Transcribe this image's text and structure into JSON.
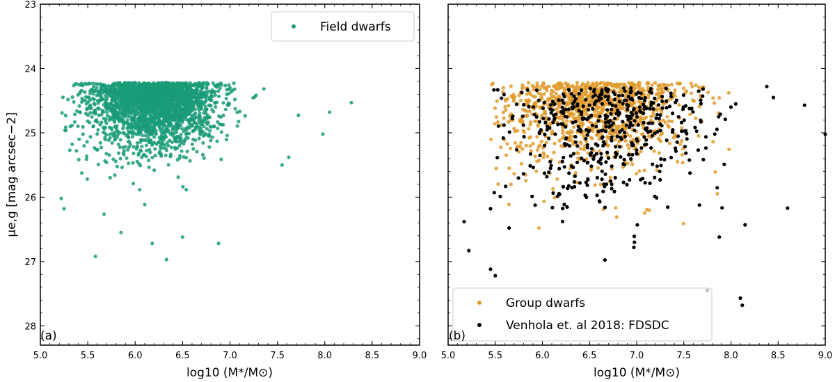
{
  "colors": {
    "field": "#1a9b78",
    "group": "#e09a2a",
    "venhola": "#000000"
  },
  "chart_data": [
    {
      "type": "scatter",
      "panel_label": "(a)",
      "xlabel": "log10 (M*/M⊙)",
      "ylabel": "μe,g [mag arcsec−2]",
      "xlim": [
        5.0,
        9.0
      ],
      "ylim": [
        28.3,
        23.0
      ],
      "y_inverted": true,
      "xticks": [
        "5.0",
        "5.5",
        "6.0",
        "6.5",
        "7.0",
        "7.5",
        "8.0",
        "8.5",
        "9.0"
      ],
      "yticks": [
        "23",
        "24",
        "25",
        "26",
        "27",
        "28"
      ],
      "legend_position": "top-right",
      "series": [
        {
          "name": "Field dwarfs",
          "color": "#1a9b78",
          "generator": {
            "n": 2400,
            "seed": 11,
            "mu_floor": 24.22,
            "x_range": [
              5.2,
              8.3
            ],
            "core": {
              "x_mean": 6.2,
              "x_sd": 0.33,
              "y_scale": 0.55
            }
          },
          "outliers": [
            [
              5.58,
              26.92
            ],
            [
              6.33,
              26.97
            ],
            [
              6.18,
              26.72
            ],
            [
              6.88,
              26.72
            ],
            [
              8.28,
              24.53
            ],
            [
              8.05,
              24.68
            ],
            [
              7.98,
              25.02
            ],
            [
              5.22,
              26.02
            ],
            [
              5.25,
              26.18
            ],
            [
              5.38,
              25.28
            ],
            [
              5.45,
              25.02
            ],
            [
              7.62,
              25.38
            ],
            [
              7.55,
              25.5
            ],
            [
              5.85,
              26.55
            ],
            [
              6.5,
              26.62
            ]
          ]
        }
      ]
    },
    {
      "type": "scatter",
      "panel_label": "(b)",
      "xlabel": "log10 (M*/M⊙)",
      "xlim": [
        5.0,
        9.0
      ],
      "ylim": [
        28.3,
        23.0
      ],
      "y_inverted": true,
      "xticks": [
        "5.0",
        "5.5",
        "6.0",
        "6.5",
        "7.0",
        "7.5",
        "8.0",
        "8.5",
        "9.0"
      ],
      "legend_position": "bottom-left",
      "series": [
        {
          "name": "Group dwarfs",
          "color": "#e09a2a",
          "generator": {
            "n": 1100,
            "seed": 23,
            "mu_floor": 24.22,
            "x_range": [
              5.45,
              8.05
            ],
            "core": {
              "x_mean": 6.55,
              "x_sd": 0.5,
              "y_scale": 0.75
            }
          }
        },
        {
          "name": "Venhola et. al 2018: FDSDC",
          "color": "#000000",
          "generator": {
            "n": 480,
            "seed": 37,
            "mu_floor": 24.3,
            "x_range": [
              5.45,
              8.2
            ],
            "core": {
              "x_mean": 6.7,
              "x_sd": 0.55,
              "y_scale": 1.05
            }
          },
          "outliers": [
            [
              5.17,
              26.38
            ],
            [
              5.22,
              26.83
            ],
            [
              5.45,
              27.12
            ],
            [
              5.5,
              27.22
            ],
            [
              5.45,
              26.18
            ],
            [
              8.1,
              27.57
            ],
            [
              8.12,
              27.68
            ],
            [
              8.6,
              26.17
            ],
            [
              8.78,
              24.57
            ],
            [
              8.38,
              24.28
            ],
            [
              8.45,
              24.45
            ],
            [
              8.15,
              26.43
            ],
            [
              9.0,
              25.02
            ],
            [
              8.05,
              24.55
            ],
            [
              7.75,
              27.45
            ],
            [
              8.0,
              24.6
            ]
          ]
        }
      ]
    }
  ]
}
